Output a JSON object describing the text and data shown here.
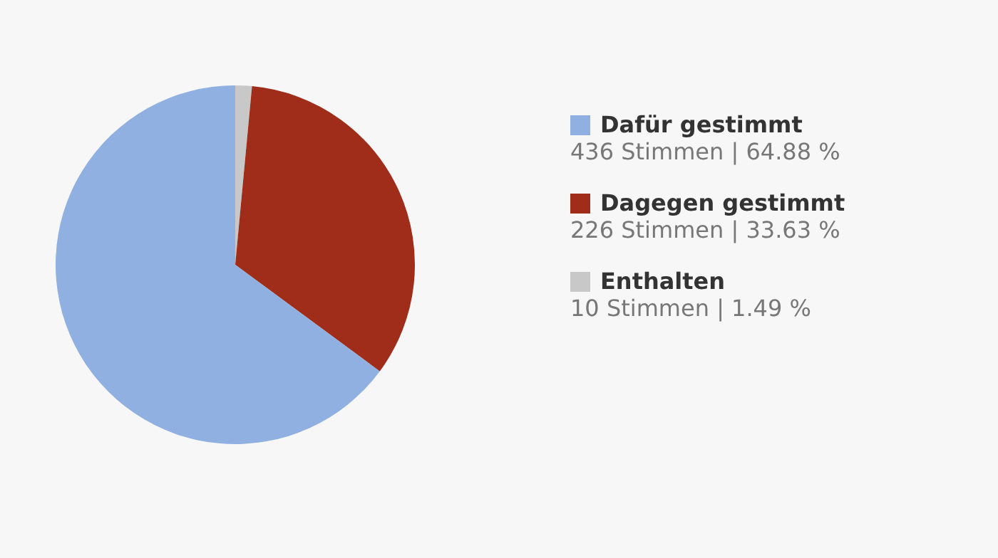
{
  "chart_data": {
    "type": "pie",
    "categories": [
      "Dafür gestimmt",
      "Dagegen gestimmt",
      "Enthalten"
    ],
    "values": [
      436,
      226,
      10
    ],
    "colors": [
      "#8fb0e0",
      "#a02c1a",
      "#c8c8c8"
    ],
    "value_labels": [
      "436 Stimmen | 64.88 %",
      "226 Stimmen | 33.63 %",
      "10 Stimmen | 1.49 %"
    ],
    "legend": "right"
  }
}
